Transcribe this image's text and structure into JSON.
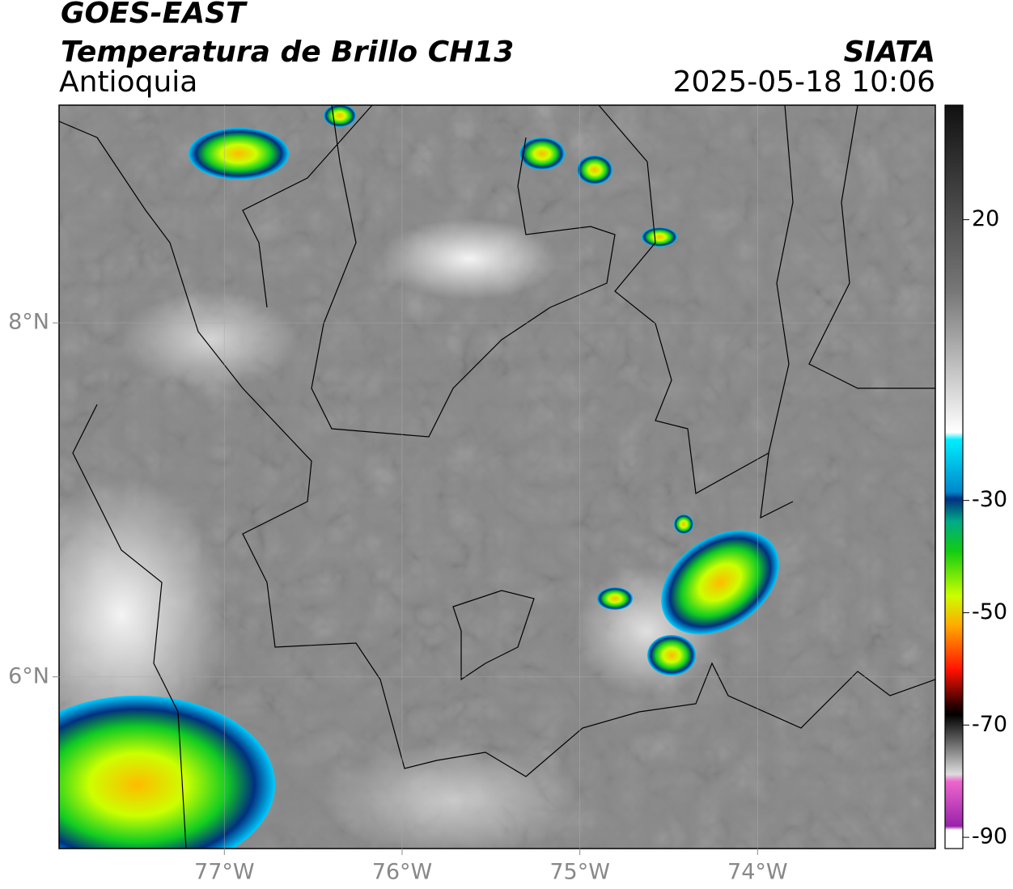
{
  "header": {
    "title": "GOES-EAST",
    "subtitle": "Temperatura de Brillo CH13",
    "region": "Antioquia",
    "source": "SIATA",
    "datetime": "2025-05-18 10:06"
  },
  "map": {
    "xlim": [
      -77.93,
      -73.0
    ],
    "ylim": [
      5.03,
      9.23
    ],
    "xticks": [
      {
        "value": -77,
        "label": "77°W"
      },
      {
        "value": -76,
        "label": "76°W"
      },
      {
        "value": -75,
        "label": "75°W"
      },
      {
        "value": -74,
        "label": "74°W"
      }
    ],
    "yticks": [
      {
        "value": 8,
        "label": "8°N"
      },
      {
        "value": 6,
        "label": "6°N"
      }
    ]
  },
  "colorbar": {
    "lim": [
      -92,
      40.4
    ],
    "ticks": [
      20,
      -30,
      -50,
      -70,
      -90
    ]
  }
}
